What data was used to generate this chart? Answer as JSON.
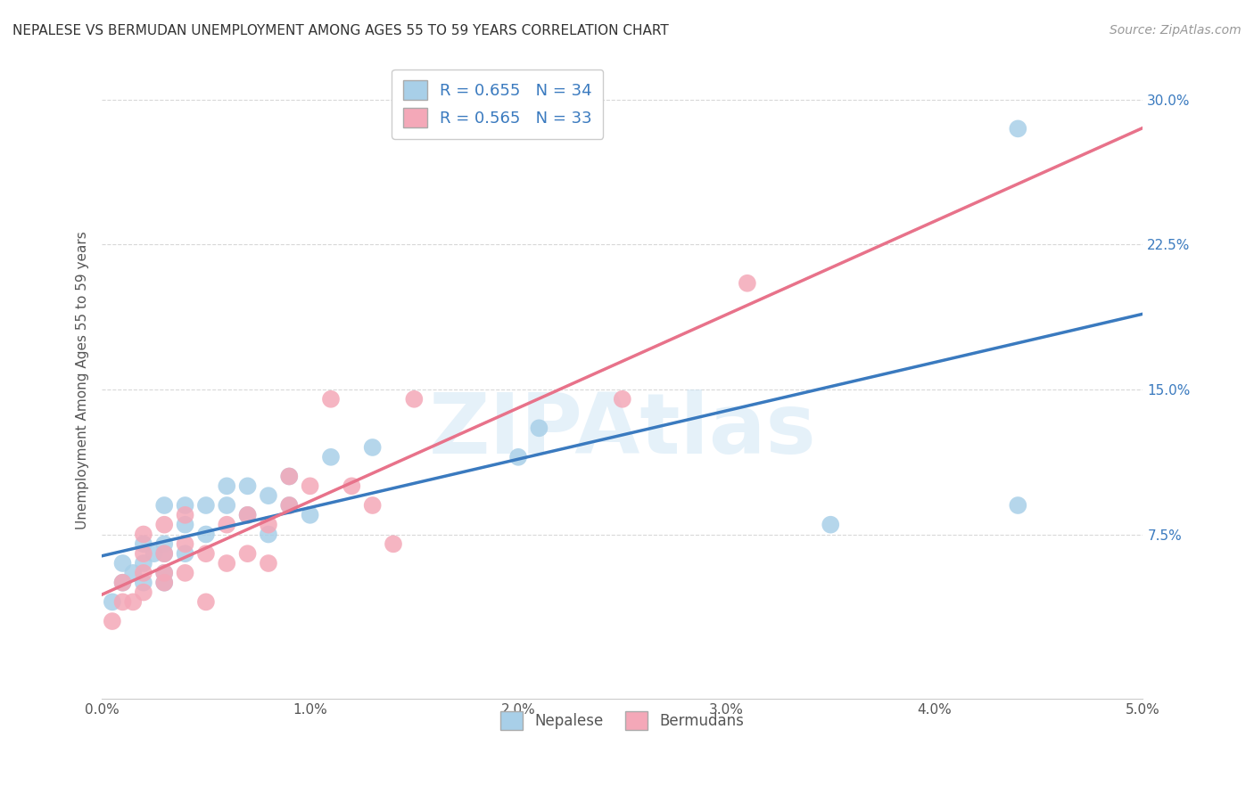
{
  "title": "NEPALESE VS BERMUDAN UNEMPLOYMENT AMONG AGES 55 TO 59 YEARS CORRELATION CHART",
  "source_text": "Source: ZipAtlas.com",
  "ylabel": "Unemployment Among Ages 55 to 59 years",
  "xlim": [
    0.0,
    0.05
  ],
  "ylim": [
    -0.01,
    0.32
  ],
  "xtick_labels": [
    "0.0%",
    "1.0%",
    "2.0%",
    "3.0%",
    "4.0%",
    "5.0%"
  ],
  "xtick_values": [
    0.0,
    0.01,
    0.02,
    0.03,
    0.04,
    0.05
  ],
  "ytick_labels": [
    "7.5%",
    "15.0%",
    "22.5%",
    "30.0%"
  ],
  "ytick_values": [
    0.075,
    0.15,
    0.225,
    0.3
  ],
  "r_nepalese": 0.655,
  "n_nepalese": 34,
  "r_bermudan": 0.565,
  "n_bermudan": 33,
  "color_nepalese": "#a8cfe8",
  "color_bermudan": "#f4a8b8",
  "color_nepalese_line": "#3a7abf",
  "color_bermudan_line": "#e8728a",
  "color_dashed": "#c8c8c8",
  "watermark": "ZIPAtlas",
  "background_color": "#ffffff",
  "grid_color": "#d8d8d8",
  "nepalese_x": [
    0.0005,
    0.001,
    0.001,
    0.0015,
    0.002,
    0.002,
    0.002,
    0.0025,
    0.003,
    0.003,
    0.003,
    0.003,
    0.003,
    0.004,
    0.004,
    0.004,
    0.005,
    0.005,
    0.006,
    0.006,
    0.007,
    0.007,
    0.008,
    0.008,
    0.009,
    0.009,
    0.01,
    0.011,
    0.013,
    0.02,
    0.021,
    0.035,
    0.044,
    0.044
  ],
  "nepalese_y": [
    0.04,
    0.05,
    0.06,
    0.055,
    0.05,
    0.06,
    0.07,
    0.065,
    0.05,
    0.055,
    0.065,
    0.07,
    0.09,
    0.065,
    0.08,
    0.09,
    0.075,
    0.09,
    0.09,
    0.1,
    0.085,
    0.1,
    0.075,
    0.095,
    0.09,
    0.105,
    0.085,
    0.115,
    0.12,
    0.115,
    0.13,
    0.08,
    0.09,
    0.285
  ],
  "bermudan_x": [
    0.0005,
    0.001,
    0.001,
    0.0015,
    0.002,
    0.002,
    0.002,
    0.002,
    0.003,
    0.003,
    0.003,
    0.003,
    0.004,
    0.004,
    0.004,
    0.005,
    0.005,
    0.006,
    0.006,
    0.007,
    0.007,
    0.008,
    0.008,
    0.009,
    0.009,
    0.01,
    0.011,
    0.012,
    0.013,
    0.014,
    0.015,
    0.025,
    0.031
  ],
  "bermudan_y": [
    0.03,
    0.04,
    0.05,
    0.04,
    0.045,
    0.055,
    0.065,
    0.075,
    0.05,
    0.055,
    0.065,
    0.08,
    0.055,
    0.07,
    0.085,
    0.04,
    0.065,
    0.06,
    0.08,
    0.065,
    0.085,
    0.06,
    0.08,
    0.09,
    0.105,
    0.1,
    0.145,
    0.1,
    0.09,
    0.07,
    0.145,
    0.145,
    0.205
  ],
  "legend_nepalese_label": "R = 0.655   N = 34",
  "legend_bermudan_label": "R = 0.565   N = 33",
  "bottom_legend_nepalese": "Nepalese",
  "bottom_legend_bermudan": "Bermudans"
}
